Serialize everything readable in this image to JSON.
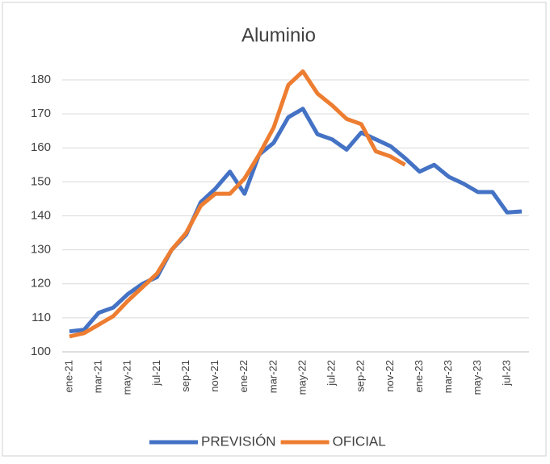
{
  "chart_data": {
    "type": "line",
    "title": "Aluminio",
    "categories": [
      "ene-21",
      null,
      "mar-21",
      null,
      "may-21",
      null,
      "jul-21",
      null,
      "sep-21",
      null,
      "nov-21",
      null,
      "ene-22",
      null,
      "mar-22",
      null,
      "may-22",
      null,
      "jul-22",
      null,
      "sep-22",
      null,
      "nov-22",
      null,
      "ene-23",
      null,
      "mar-23",
      null,
      "may-23",
      null,
      "jul-23",
      null
    ],
    "series": [
      {
        "name": "PREVISIÓN",
        "color": "#4472c4",
        "values": [
          106,
          106.5,
          111.5,
          113,
          117,
          120,
          122,
          130,
          134.5,
          144,
          148,
          153,
          146.5,
          158,
          161.5,
          169,
          171.5,
          164,
          162.5,
          159.5,
          164.5,
          162.5,
          160.5,
          157,
          153,
          155,
          151.5,
          149.5,
          147,
          147,
          141,
          141.3
        ]
      },
      {
        "name": "OFICIAL",
        "color": "#ed7d31",
        "values": [
          104.5,
          105.5,
          108,
          110.5,
          115,
          119,
          123,
          130,
          135,
          143,
          146.5,
          146.5,
          151,
          158,
          166,
          178.5,
          182.5,
          176,
          172.5,
          168.5,
          167,
          159,
          157.5,
          155,
          null,
          null,
          null,
          null,
          null,
          null,
          null,
          null
        ]
      }
    ],
    "ylim": [
      100,
      180
    ],
    "yticks": [
      100,
      110,
      120,
      130,
      140,
      150,
      160,
      170,
      180
    ],
    "grid": true
  }
}
